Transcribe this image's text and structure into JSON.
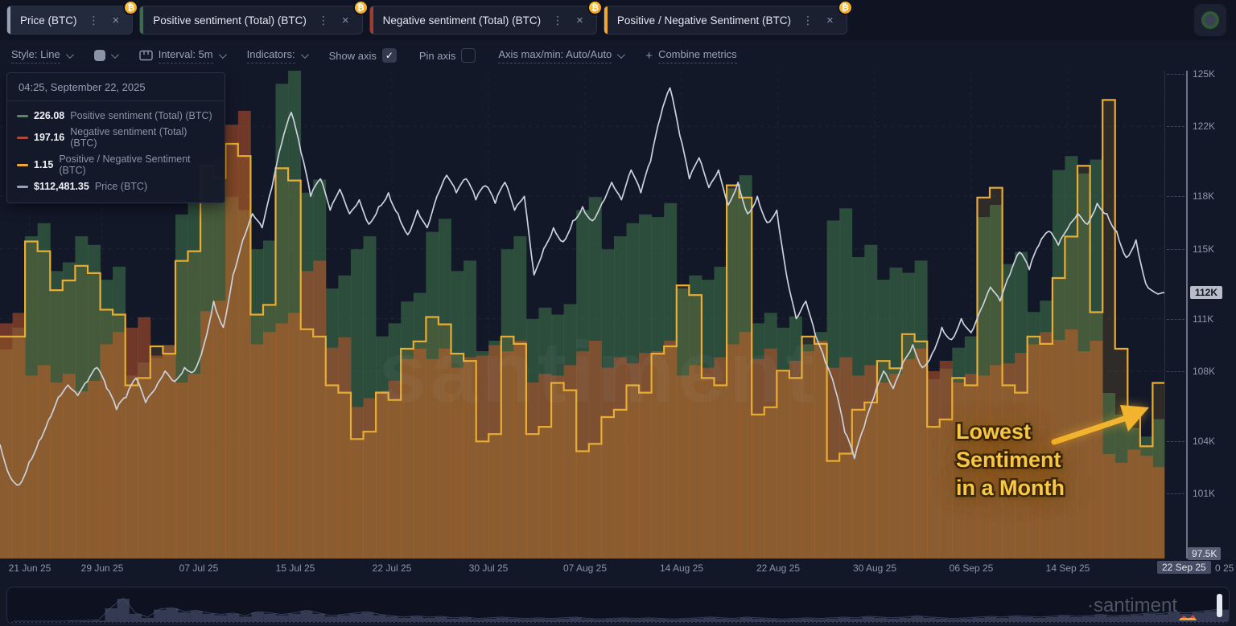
{
  "header": {
    "tabs": [
      {
        "label": "Price (BTC)",
        "accent": "#98a1b3",
        "menu_icon": "⋮",
        "close_icon": "×",
        "badge": "₿",
        "active": true
      },
      {
        "label": "Positive sentiment (Total) (BTC)",
        "accent": "#3e6b50",
        "menu_icon": "⋮",
        "close_icon": "×",
        "badge": "₿",
        "active": false
      },
      {
        "label": "Negative sentiment (Total) (BTC)",
        "accent": "#a23d2e",
        "menu_icon": "⋮",
        "close_icon": "×",
        "badge": "₿",
        "active": false
      },
      {
        "label": "Positive / Negative Sentiment (BTC)",
        "accent": "#f0a92e",
        "menu_icon": "⋮",
        "close_icon": "×",
        "badge": "₿",
        "active": false
      }
    ]
  },
  "toolbar": {
    "style_label": "Style: Line",
    "interval_label": "Interval: 5m",
    "indicators_label": "Indicators:",
    "show_axis_label": "Show axis",
    "show_axis_checked": true,
    "check_glyph": "✓",
    "pin_axis_label": "Pin axis",
    "pin_axis_checked": false,
    "axis_maxmin_label": "Axis max/min: Auto/Auto",
    "combine_plus": "+",
    "combine_label": "Combine metrics"
  },
  "tooltip": {
    "timestamp": "04:25, September 22, 2025",
    "rows": [
      {
        "value": "226.08",
        "label": "Positive sentiment (Total) (BTC)",
        "color": "#5d8764"
      },
      {
        "value": "197.16",
        "label": "Negative sentiment (Total) (BTC)",
        "color": "#a84b3c"
      },
      {
        "value": "1.15",
        "label": "Positive / Negative Sentiment (BTC)",
        "color": "#f2a93b"
      },
      {
        "value": "$112,481.35",
        "label": "Price (BTC)",
        "color": "#9aa2b2"
      }
    ]
  },
  "annotation": {
    "line1": "Lowest",
    "line2": "Sentiment",
    "line3": "in a Month",
    "color": "#f8c848"
  },
  "watermark": "santiment",
  "y_axis": {
    "ticks": [
      {
        "label": "125K",
        "value": 125
      },
      {
        "label": "122K",
        "value": 122
      },
      {
        "label": "118K",
        "value": 118
      },
      {
        "label": "115K",
        "value": 115
      },
      {
        "label": "111K",
        "value": 111
      },
      {
        "label": "108K",
        "value": 108
      },
      {
        "label": "104K",
        "value": 104
      },
      {
        "label": "101K",
        "value": 101
      }
    ],
    "price_badge": {
      "label": "112K",
      "value": 112.48
    },
    "min_chip": {
      "label": "97.5K",
      "value": 97.5
    }
  },
  "x_axis": {
    "ticks": [
      "21 Jun 25",
      "29 Jun 25",
      "07 Jul 25",
      "15 Jul 25",
      "22 Jul 25",
      "30 Jul 25",
      "07 Aug 25",
      "14 Aug 25",
      "22 Aug 25",
      "30 Aug 25",
      "06 Sep 25",
      "14 Sep 25"
    ],
    "badge": "22 Sep 25",
    "residual": "0 25"
  },
  "minimap": {
    "watermark": "·santiment",
    "bars": [
      0,
      0,
      0,
      0,
      0,
      0.02,
      0.03,
      0.05,
      0.5,
      0.85,
      0.3,
      0.15,
      0.45,
      0.5,
      0.35,
      0.4,
      0.3,
      0.25,
      0.3,
      0.2,
      0.35,
      0.3,
      0.25,
      0.3,
      0.4,
      0.3,
      0.2,
      0.25,
      0.3,
      0.35,
      0.25,
      0.2,
      0.15,
      0.2,
      0.15,
      0.18,
      0.12,
      0.15,
      0.1,
      0.12,
      0.15,
      0.12,
      0.1,
      0.12,
      0.1,
      0.12,
      0.15,
      0.1,
      0.08,
      0.1,
      0.12,
      0.1,
      0.12,
      0.1,
      0.08,
      0.1,
      0.12,
      0.15,
      0.12,
      0.1,
      0.15,
      0.12,
      0.1,
      0.08,
      0.1,
      0.12,
      0.1,
      0.12,
      0.15,
      0.12,
      0.18,
      0.15,
      0.12,
      0.15,
      0.2,
      0.15,
      0.12,
      0.1,
      0.12,
      0.15,
      0.18,
      0.15,
      0.2,
      0.18,
      0.15,
      0.18,
      0.22,
      0.18,
      0.2,
      0.25,
      0.2,
      0.22,
      0.25,
      0.3,
      0.28,
      0.35,
      0.3,
      0.35,
      0.4,
      0.45
    ]
  },
  "chart_data": {
    "type": "mixed",
    "x_range": [
      "21 Jun 25",
      "22 Sep 25"
    ],
    "price_axis": {
      "min": 97.5,
      "max": 125,
      "unit": "USD K",
      "current": 112.48
    },
    "sentiment_scale_max": 560,
    "ratio_axis": {
      "min": 0.4,
      "max": 2.4
    },
    "series": [
      {
        "name": "Positive sentiment (Total) (BTC)",
        "type": "bar",
        "color": "#3e6e48",
        "values": [
          240,
          265,
          370,
          385,
          330,
          340,
          370,
          360,
          320,
          335,
          210,
          225,
          230,
          245,
          395,
          410,
          450,
          460,
          415,
          400,
          355,
          365,
          545,
          560,
          420,
          435,
          310,
          325,
          355,
          370,
          255,
          270,
          295,
          305,
          375,
          390,
          330,
          342,
          238,
          250,
          355,
          370,
          275,
          288,
          280,
          292,
          400,
          415,
          355,
          370,
          385,
          395,
          392,
          408,
          310,
          325,
          320,
          335,
          425,
          440,
          270,
          282,
          265,
          278,
          246,
          260,
          388,
          402,
          346,
          360,
          320,
          334,
          328,
          342,
          206,
          218,
          242,
          255,
          392,
          406,
          338,
          352,
          283,
          296,
          446,
          462,
          442,
          458,
          190,
          165,
          150,
          140,
          160
        ]
      },
      {
        "name": "Negative sentiment (Total) (BTC)",
        "type": "bar",
        "color": "#be5428",
        "values": [
          270,
          282,
          210,
          222,
          202,
          212,
          192,
          204,
          246,
          260,
          265,
          277,
          233,
          245,
          202,
          212,
          284,
          296,
          498,
          514,
          246,
          260,
          270,
          282,
          330,
          342,
          242,
          254,
          174,
          184,
          192,
          204,
          229,
          241,
          229,
          241,
          219,
          231,
          233,
          245,
          238,
          250,
          202,
          212,
          210,
          222,
          238,
          250,
          219,
          231,
          224,
          236,
          238,
          250,
          210,
          222,
          219,
          231,
          246,
          260,
          229,
          241,
          215,
          227,
          238,
          250,
          219,
          231,
          210,
          222,
          202,
          212,
          229,
          241,
          215,
          227,
          202,
          212,
          210,
          222,
          224,
          236,
          246,
          260,
          251,
          263,
          238,
          250,
          120,
          110,
          125,
          118,
          105
        ]
      },
      {
        "name": "Positive / Negative Sentiment (BTC)",
        "type": "step-line",
        "color": "#e9ad33",
        "values": [
          1.31,
          1.31,
          1.7,
          1.66,
          1.5,
          1.54,
          1.6,
          1.57,
          1.42,
          1.4,
          1.11,
          1.14,
          1.27,
          1.24,
          1.62,
          1.66,
          2.01,
          1.96,
          2.1,
          2.05,
          1.4,
          1.44,
          2.0,
          1.95,
          1.34,
          1.31,
          1.11,
          1.08,
          0.89,
          0.92,
          1.08,
          1.05,
          1.26,
          1.29,
          1.39,
          1.36,
          1.24,
          1.21,
          0.88,
          0.91,
          1.31,
          1.28,
          0.91,
          0.94,
          1.12,
          1.09,
          0.84,
          0.87,
          0.98,
          1.01,
          1.11,
          1.08,
          1.24,
          1.27,
          1.52,
          1.48,
          1.14,
          1.11,
          1.93,
          1.88,
          0.99,
          1.02,
          1.17,
          1.14,
          1.31,
          1.28,
          0.8,
          0.83,
          1.01,
          1.04,
          1.21,
          1.18,
          1.32,
          1.29,
          0.94,
          0.97,
          1.14,
          1.11,
          1.88,
          1.92,
          1.11,
          1.08,
          1.31,
          1.28,
          1.55,
          1.72,
          2.01,
          1.41,
          2.28,
          1.26,
          1.0,
          0.86,
          1.12
        ]
      },
      {
        "name": "Price (BTC)",
        "type": "line",
        "color": "#cbd1dd",
        "values_usd_k": [
          103.8,
          102.0,
          101.5,
          102.8,
          104.0,
          105.2,
          106.5,
          107.2,
          106.6,
          107.4,
          108.2,
          107.0,
          105.8,
          106.5,
          107.6,
          106.2,
          107.0,
          108.0,
          107.4,
          108.2,
          108.0,
          109.5,
          112.0,
          110.5,
          113.5,
          115.5,
          117.0,
          116.2,
          118.5,
          121.0,
          122.8,
          120.5,
          118.0,
          119.0,
          117.2,
          118.4,
          117.0,
          117.8,
          116.4,
          117.4,
          118.2,
          117.0,
          115.8,
          117.2,
          116.2,
          118.0,
          119.2,
          118.2,
          119.0,
          117.8,
          118.6,
          117.6,
          118.8,
          117.2,
          118.0,
          113.5,
          115.0,
          116.2,
          115.4,
          116.6,
          117.4,
          116.6,
          117.6,
          118.8,
          117.8,
          119.5,
          118.2,
          120.0,
          122.5,
          124.2,
          121.5,
          119.0,
          120.2,
          118.5,
          119.5,
          117.5,
          118.8,
          117.0,
          118.0,
          116.5,
          117.2,
          113.5,
          111.0,
          112.0,
          110.0,
          108.5,
          107.0,
          104.5,
          103.0,
          104.8,
          106.5,
          108.0,
          107.0,
          108.5,
          109.5,
          108.2,
          109.0,
          110.5,
          109.8,
          111.0,
          110.2,
          111.5,
          112.8,
          112.0,
          113.5,
          114.8,
          113.8,
          115.2,
          116.0,
          115.2,
          116.2,
          117.0,
          116.4,
          117.6,
          117.0,
          116.0,
          114.5,
          115.5,
          113.0,
          112.48,
          112.48
        ]
      }
    ]
  }
}
